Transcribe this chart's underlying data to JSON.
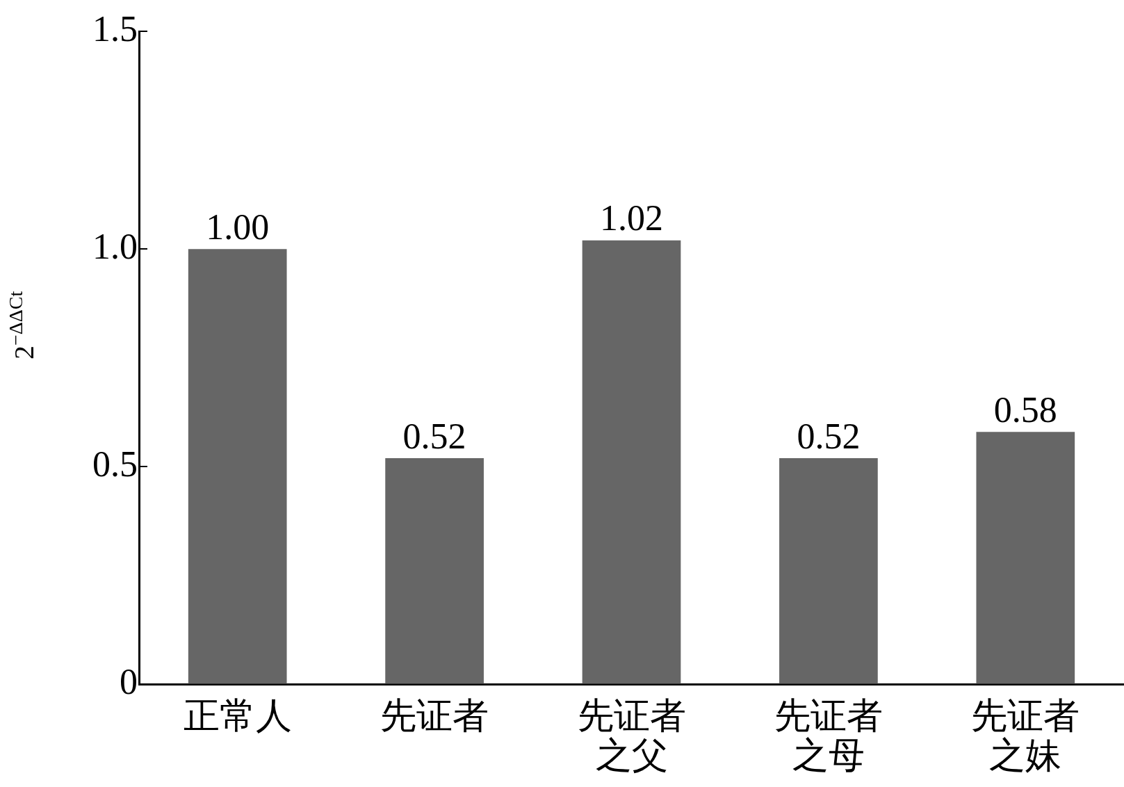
{
  "chart_data": {
    "type": "bar",
    "ylabel": "2$^{−ΔΔCt}$",
    "categories": [
      "正常人",
      "先证者",
      "先证者之父",
      "先证者之母",
      "先证者之妹"
    ],
    "values": [
      1.0,
      0.52,
      1.02,
      0.52,
      0.58
    ],
    "value_labels": [
      "1.00",
      "0.52",
      "1.02",
      "0.52",
      "0.58"
    ],
    "color": "#666666",
    "ylim": [
      0,
      1.5
    ],
    "yticks": [
      0,
      {
        "value": 0.5,
        "label": "0.5"
      },
      {
        "value": 1,
        "label": "1.0"
      },
      {
        "value": 1.5,
        "label": "1.5"
      }
    ],
    "grid": false,
    "legend": false
  }
}
